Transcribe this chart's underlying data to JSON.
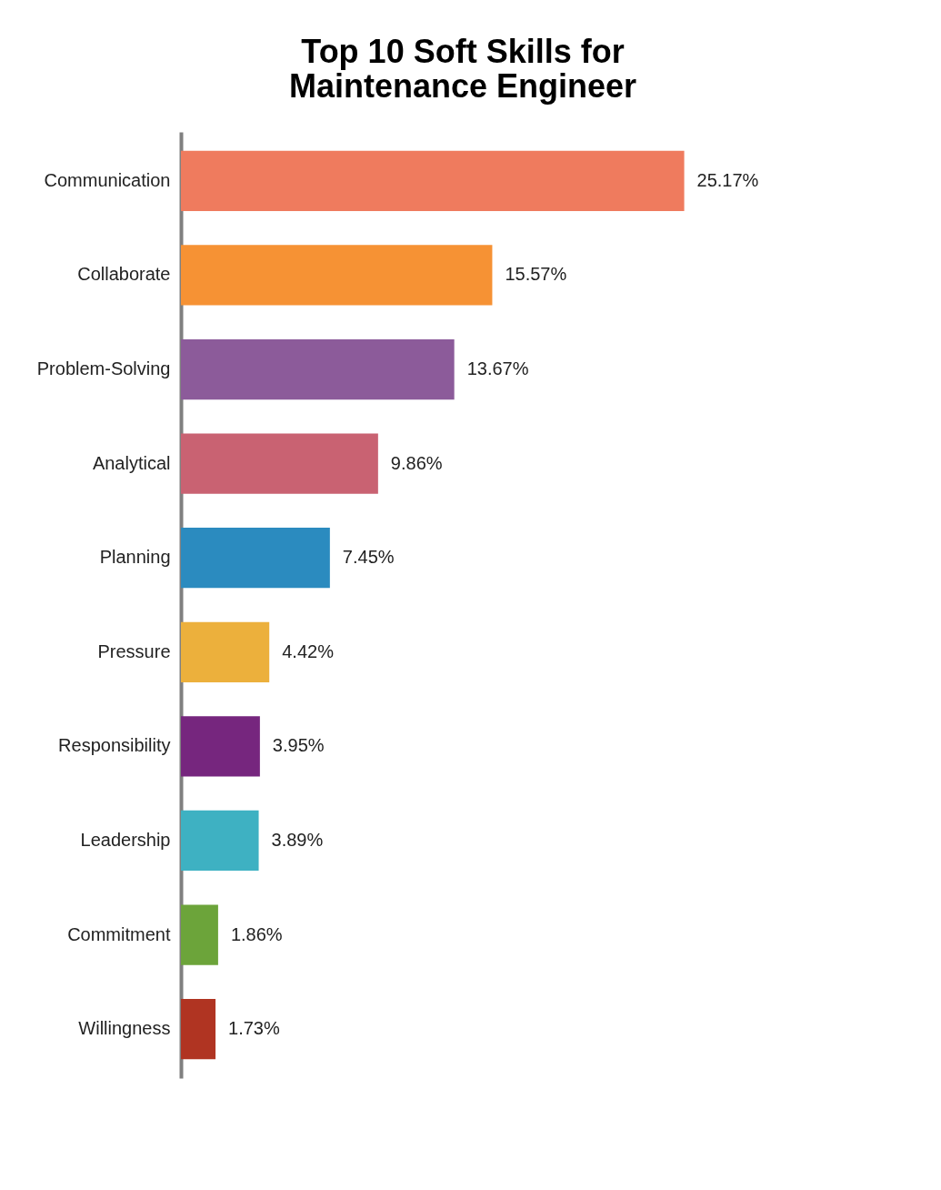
{
  "chart_data": {
    "type": "bar",
    "orientation": "horizontal",
    "title": "Top 10 Soft Skills for Maintenance Engineer",
    "categories": [
      "Communication",
      "Collaborate",
      "Problem-Solving",
      "Analytical",
      "Planning",
      "Pressure",
      "Responsibility",
      "Leadership",
      "Commitment",
      "Willingness"
    ],
    "values": [
      25.17,
      15.57,
      13.67,
      9.86,
      7.45,
      4.42,
      3.95,
      3.89,
      1.86,
      1.73
    ],
    "value_labels": [
      "25.17%",
      "15.57%",
      "13.67%",
      "9.86%",
      "7.45%",
      "4.42%",
      "3.95%",
      "3.89%",
      "1.86%",
      "1.73%"
    ],
    "colors": [
      "#ef7b5e",
      "#f69234",
      "#8c5b9a",
      "#c96272",
      "#2b8bbf",
      "#ecb03c",
      "#76267e",
      "#3eb1c2",
      "#6ca43a",
      "#b03422"
    ],
    "grid": false
  }
}
